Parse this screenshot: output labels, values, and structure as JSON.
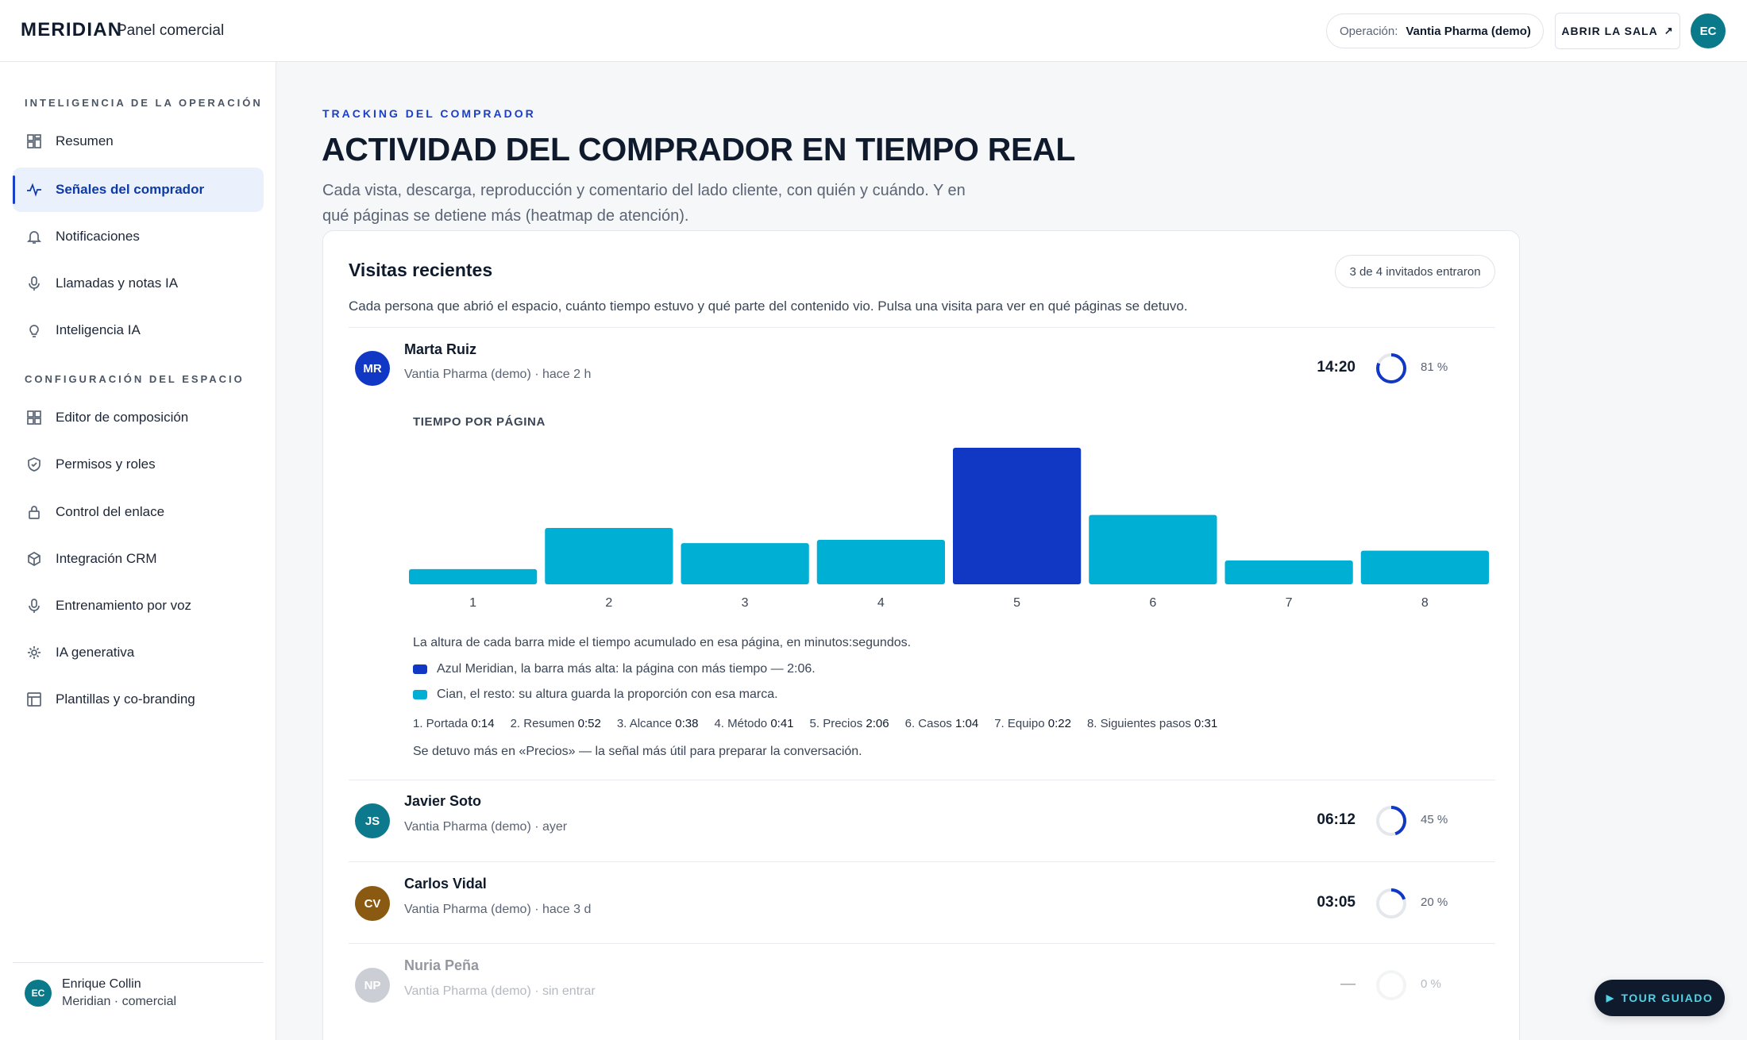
{
  "header": {
    "brand": "MERIDIAN",
    "subtitle": "Panel comercial",
    "operation_label": "Operación:",
    "operation_value": "Vantia Pharma (demo)",
    "open_room": "ABRIR LA SALA",
    "open_room_icon": "arrow-up-right-icon",
    "user_initials": "EC"
  },
  "sidebar": {
    "section1": "INTELIGENCIA DE LA OPERACIÓN",
    "section2": "CONFIGURACIÓN DEL ESPACIO",
    "items": [
      {
        "label": "Resumen",
        "icon": "grid-icon"
      },
      {
        "label": "Señales del comprador",
        "icon": "pulse-icon",
        "active": true
      },
      {
        "label": "Notificaciones",
        "icon": "bell-icon"
      },
      {
        "label": "Llamadas y notas IA",
        "icon": "microphone-icon"
      },
      {
        "label": "Inteligencia IA",
        "icon": "lightbulb-icon"
      },
      {
        "label": "Editor de composición",
        "icon": "layout-icon"
      },
      {
        "label": "Permisos y roles",
        "icon": "shield-icon"
      },
      {
        "label": "Control del enlace",
        "icon": "lock-icon"
      },
      {
        "label": "Integración CRM",
        "icon": "cube-icon"
      },
      {
        "label": "Entrenamiento por voz",
        "icon": "microphone-icon"
      },
      {
        "label": "IA generativa",
        "icon": "sparkle-icon"
      },
      {
        "label": "Plantillas y co-branding",
        "icon": "template-icon"
      }
    ],
    "footer": {
      "initials": "EC",
      "name": "Enrique Collin",
      "role": "Meridian · comercial"
    }
  },
  "main": {
    "eyebrow": "TRACKING DEL COMPRADOR",
    "title": "ACTIVIDAD DEL COMPRADOR EN TIEMPO REAL",
    "description": "Cada vista, descarga, reproducción y comentario del lado cliente, con quién y cuándo. Y en qué páginas se detiene más (heatmap de atención)."
  },
  "card": {
    "title": "Visitas recientes",
    "pill": "3 de 4 invitados entraron",
    "description": "Cada persona que abrió el espacio, cuánto tiempo estuvo y qué parte del contenido vio. Pulsa una visita para ver en qué páginas se detuvo.",
    "visits": [
      {
        "initials": "MR",
        "name": "Marta Ruiz",
        "meta": "Vantia Pharma (demo) · hace 2 h",
        "time": "14:20",
        "pct_label": "81 %",
        "pct": 81,
        "color": "#1138c4"
      },
      {
        "initials": "JS",
        "name": "Javier Soto",
        "meta": "Vantia Pharma (demo) · ayer",
        "time": "06:12",
        "pct_label": "45 %",
        "pct": 45,
        "color": "#0c7a8c"
      },
      {
        "initials": "CV",
        "name": "Carlos Vidal",
        "meta": "Vantia Pharma (demo) · hace 3 d",
        "time": "03:05",
        "pct_label": "20 %",
        "pct": 20,
        "color": "#8a5a12"
      },
      {
        "initials": "NP",
        "name": "Nuria Peña",
        "meta": "Vantia Pharma (demo) · sin entrar",
        "time": "—",
        "pct_label": "0 %",
        "pct": 0,
        "color": "#8e96a4"
      }
    ],
    "detail": {
      "chart_label": "TIEMPO POR PÁGINA",
      "explain": "La altura de cada barra mide el tiempo acumulado en esa página, en minutos:segundos.",
      "legend_blue": "Azul Meridian, la barra más alta: la página con más tiempo — 2:06.",
      "legend_cyan": "Cian, el resto: su altura guarda la proporción con esa marca.",
      "breakdown": [
        {
          "label": "1. Portada",
          "value": "0:14"
        },
        {
          "label": "2. Resumen",
          "value": "0:52"
        },
        {
          "label": "3. Alcance",
          "value": "0:38"
        },
        {
          "label": "4. Método",
          "value": "0:41"
        },
        {
          "label": "5. Precios",
          "value": "2:06"
        },
        {
          "label": "6. Casos",
          "value": "1:04"
        },
        {
          "label": "7. Equipo",
          "value": "0:22"
        },
        {
          "label": "8. Siguientes pasos",
          "value": "0:31"
        }
      ],
      "insight": "Se detuvo más en «Precios» — la señal más útil para preparar la conversación."
    }
  },
  "chart_data": {
    "type": "bar",
    "categories": [
      "1",
      "2",
      "3",
      "4",
      "5",
      "6",
      "7",
      "8"
    ],
    "values": [
      14,
      52,
      38,
      41,
      126,
      64,
      22,
      31
    ],
    "title": "TIEMPO POR PÁGINA",
    "ylim": [
      0,
      126
    ],
    "grid": false,
    "colors": {
      "max": "#1138c4",
      "rest": "#00b0d4"
    }
  },
  "tour": {
    "label": "TOUR GUIADO",
    "icon": "play-icon"
  }
}
